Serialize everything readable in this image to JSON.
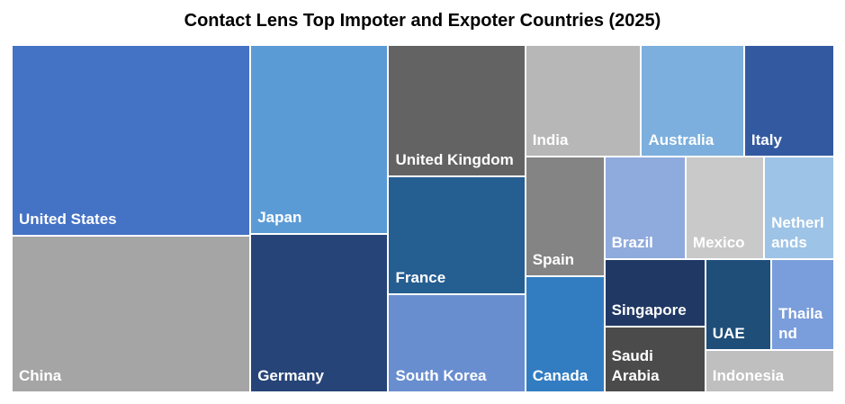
{
  "chart_data": {
    "type": "treemap",
    "title": "Contact Lens Top Impoter and Expoter Countries (2025)",
    "categories": [
      "United States",
      "China",
      "Japan",
      "Germany",
      "United Kingdom",
      "France",
      "South Korea",
      "India",
      "Australia",
      "Italy",
      "Spain",
      "Canada",
      "Brazil",
      "Mexico",
      "Netherlands",
      "Singapore",
      "Saudi Arabia",
      "UAE",
      "Thailand",
      "Indonesia"
    ],
    "values": [
      15.9,
      13.0,
      9.1,
      7.6,
      6.3,
      5.6,
      4.7,
      4.5,
      4.0,
      3.5,
      3.3,
      3.2,
      2.9,
      2.8,
      2.5,
      2.4,
      2.3,
      2.1,
      2.0,
      1.9
    ],
    "colors": [
      "#4472c4",
      "#a5a5a5",
      "#5b9bd5",
      "#264478",
      "#636363",
      "#255e91",
      "#698ed0",
      "#b7b7b7",
      "#7cafdd",
      "#335aa1",
      "#848484",
      "#327dc2",
      "#8faadc",
      "#c9c9c9",
      "#9dc3e6",
      "#203864",
      "#4b4b4b",
      "#1f4e79",
      "#7a9ddb",
      "#bfbfbf"
    ]
  }
}
